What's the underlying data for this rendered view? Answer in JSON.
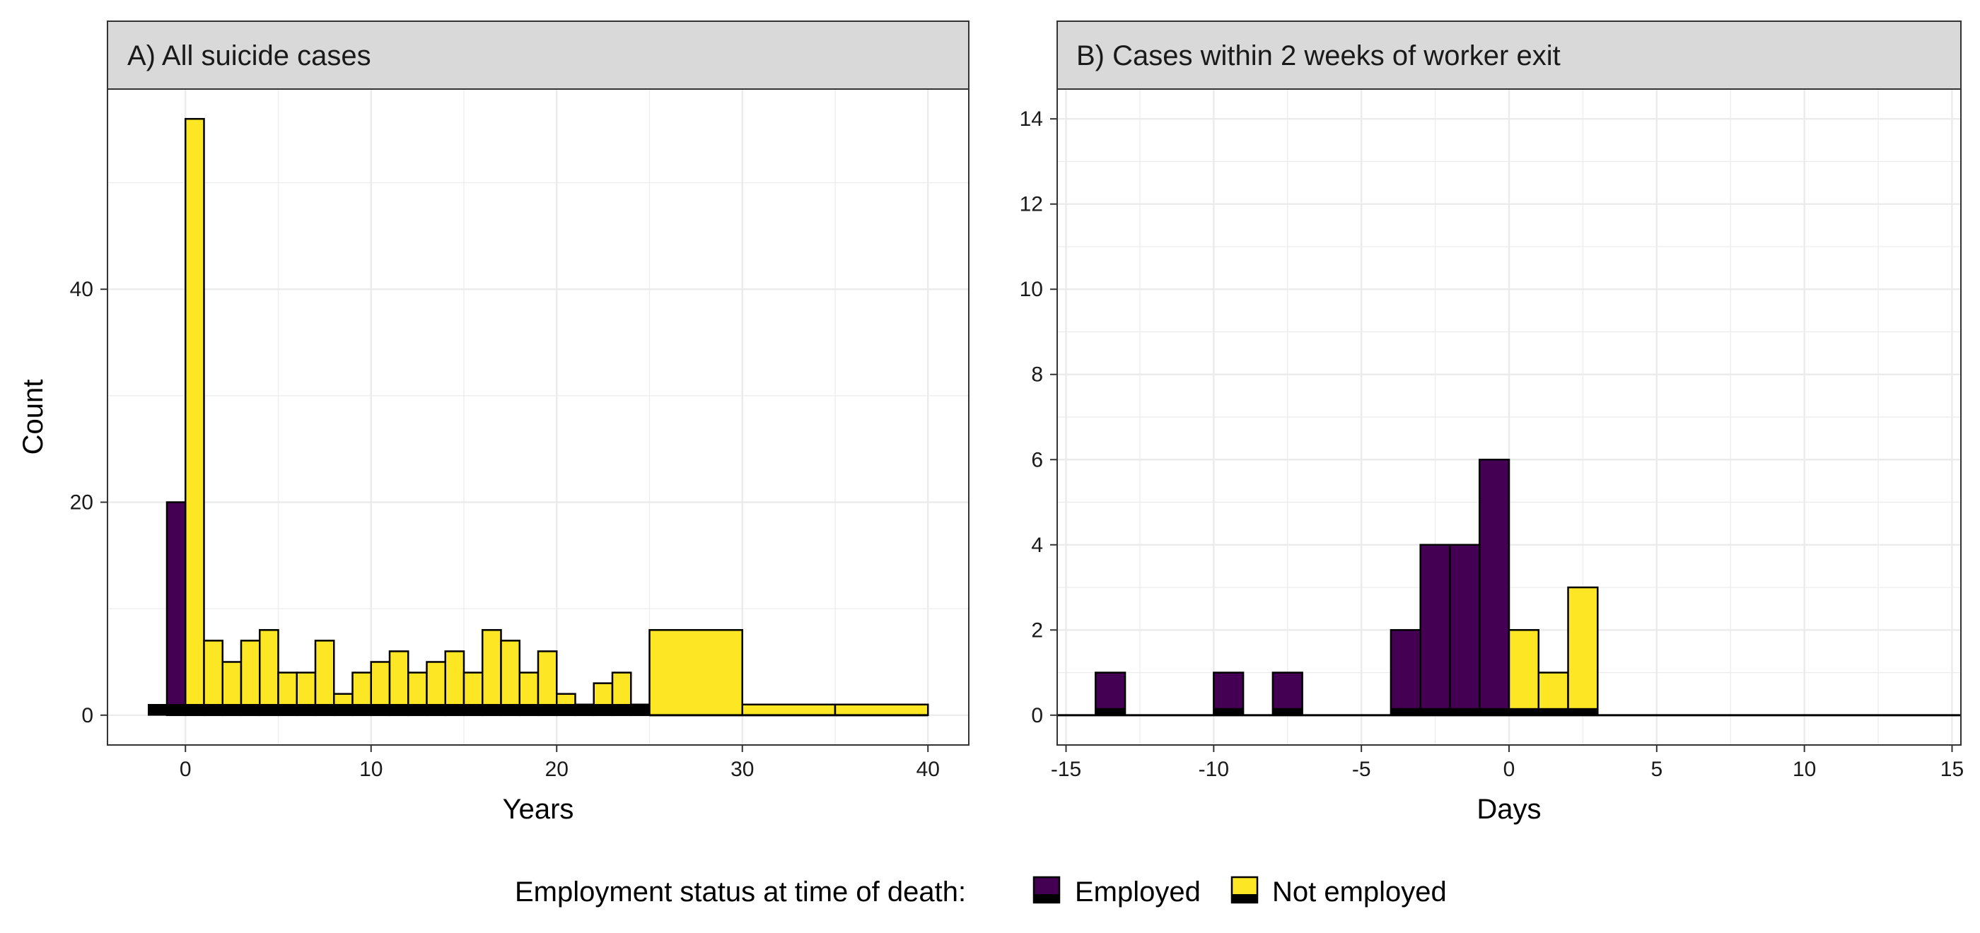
{
  "colors": {
    "employed": "#440154",
    "not_employed": "#FDE725",
    "outline": "#000000",
    "strip_fill": "#D9D9D9",
    "grid": "#EBEBEB"
  },
  "legend": {
    "title": "Employment status at time of death:",
    "items": [
      {
        "label": "Employed",
        "color": "#440154"
      },
      {
        "label": "Not employed",
        "color": "#FDE725"
      }
    ],
    "position": "bottom"
  },
  "chart_data": [
    {
      "type": "bar",
      "panel": "A",
      "title": "A) All suicide cases",
      "xlabel": "Years",
      "ylabel": "Count",
      "xlim": [
        -4.2,
        42.2
      ],
      "ylim": [
        -2.8,
        58.8
      ],
      "xticks": [
        0,
        10,
        20,
        30,
        40
      ],
      "yticks": [
        0,
        20,
        40
      ],
      "grid": true,
      "bars": [
        {
          "x0": -1,
          "x1": 0,
          "value": 20,
          "status": "Employed"
        },
        {
          "x0": 0,
          "x1": 1,
          "value": 56,
          "status": "Not employed"
        },
        {
          "x0": 1,
          "x1": 2,
          "value": 7,
          "status": "Not employed"
        },
        {
          "x0": 2,
          "x1": 3,
          "value": 5,
          "status": "Not employed"
        },
        {
          "x0": 3,
          "x1": 4,
          "value": 7,
          "status": "Not employed"
        },
        {
          "x0": 4,
          "x1": 5,
          "value": 8,
          "status": "Not employed"
        },
        {
          "x0": 5,
          "x1": 6,
          "value": 4,
          "status": "Not employed"
        },
        {
          "x0": 6,
          "x1": 7,
          "value": 4,
          "status": "Not employed"
        },
        {
          "x0": 7,
          "x1": 8,
          "value": 7,
          "status": "Not employed"
        },
        {
          "x0": 8,
          "x1": 9,
          "value": 2,
          "status": "Not employed"
        },
        {
          "x0": 9,
          "x1": 10,
          "value": 4,
          "status": "Not employed"
        },
        {
          "x0": 10,
          "x1": 11,
          "value": 5,
          "status": "Not employed"
        },
        {
          "x0": 11,
          "x1": 12,
          "value": 6,
          "status": "Not employed"
        },
        {
          "x0": 12,
          "x1": 13,
          "value": 4,
          "status": "Not employed"
        },
        {
          "x0": 13,
          "x1": 14,
          "value": 5,
          "status": "Not employed"
        },
        {
          "x0": 14,
          "x1": 15,
          "value": 6,
          "status": "Not employed"
        },
        {
          "x0": 15,
          "x1": 16,
          "value": 4,
          "status": "Not employed"
        },
        {
          "x0": 16,
          "x1": 17,
          "value": 8,
          "status": "Not employed"
        },
        {
          "x0": 17,
          "x1": 18,
          "value": 7,
          "status": "Not employed"
        },
        {
          "x0": 18,
          "x1": 19,
          "value": 4,
          "status": "Not employed"
        },
        {
          "x0": 19,
          "x1": 20,
          "value": 6,
          "status": "Not employed"
        },
        {
          "x0": 20,
          "x1": 21,
          "value": 2,
          "status": "Not employed"
        },
        {
          "x0": 21,
          "x1": 22,
          "value": 1,
          "status": "Not employed"
        },
        {
          "x0": 22,
          "x1": 23,
          "value": 3,
          "status": "Not employed"
        },
        {
          "x0": 23,
          "x1": 24,
          "value": 4,
          "status": "Not employed"
        },
        {
          "x0": 24,
          "x1": 25,
          "value": 1,
          "status": "Not employed"
        },
        {
          "x0": 25,
          "x1": 30,
          "value": 8,
          "status": "Not employed"
        },
        {
          "x0": 30,
          "x1": 35,
          "value": 1,
          "status": "Not employed"
        },
        {
          "x0": 35,
          "x1": 40,
          "value": 1,
          "status": "Not employed"
        }
      ],
      "baseline": {
        "x0": -2,
        "x1": 25,
        "value": 1
      }
    },
    {
      "type": "bar",
      "panel": "B",
      "title": "B) Cases within 2 weeks of worker exit",
      "xlabel": "Days",
      "ylabel": "",
      "xlim": [
        -15.3,
        15.3
      ],
      "ylim": [
        -0.7,
        14.7
      ],
      "xticks": [
        -15,
        -10,
        -5,
        0,
        5,
        10,
        15
      ],
      "yticks": [
        0,
        2,
        4,
        6,
        8,
        10,
        12,
        14
      ],
      "grid": true,
      "bars": [
        {
          "x0": -14,
          "x1": -13,
          "value": 1,
          "status": "Employed"
        },
        {
          "x0": -10,
          "x1": -9,
          "value": 1,
          "status": "Employed"
        },
        {
          "x0": -8,
          "x1": -7,
          "value": 1,
          "status": "Employed"
        },
        {
          "x0": -4,
          "x1": -3,
          "value": 2,
          "status": "Employed"
        },
        {
          "x0": -3,
          "x1": -2,
          "value": 4,
          "status": "Employed"
        },
        {
          "x0": -2,
          "x1": -1,
          "value": 4,
          "status": "Employed"
        },
        {
          "x0": -1,
          "x1": 0,
          "value": 6,
          "status": "Employed"
        },
        {
          "x0": 0,
          "x1": 1,
          "value": 2,
          "status": "Not employed"
        },
        {
          "x0": 1,
          "x1": 2,
          "value": 1,
          "status": "Not employed"
        },
        {
          "x0": 2,
          "x1": 3,
          "value": 3,
          "status": "Not employed"
        }
      ],
      "baseline": {
        "x0": -15.3,
        "x1": 15.3,
        "value": 0
      }
    }
  ]
}
